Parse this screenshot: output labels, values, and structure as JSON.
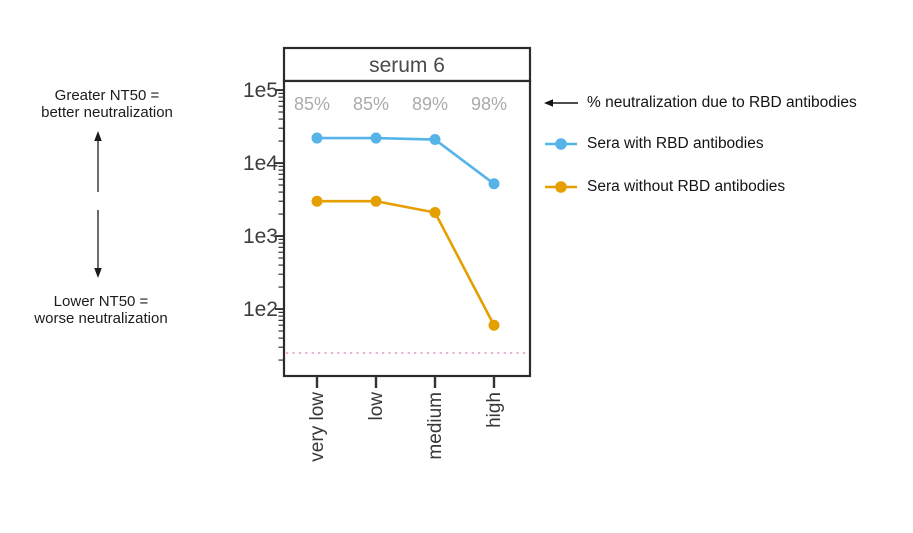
{
  "left_annotations": {
    "top_line1": "Greater NT50 =",
    "top_line2": "better neutralization",
    "bottom_line1": "Lower NT50 =",
    "bottom_line2": "worse neutralization"
  },
  "legend": {
    "arrow_label": "% neutralization due to RBD antibodies"
  },
  "chart_data": {
    "type": "line",
    "title": "serum 6",
    "x_categories": [
      "very low",
      "low",
      "medium",
      "high"
    ],
    "xlabel": "",
    "ylabel": "",
    "yscale": "log",
    "ylim": [
      13,
      130000
    ],
    "ytick_labels": [
      "1e5",
      "1e4",
      "1e3",
      "1e2"
    ],
    "ytick_values": [
      100000,
      10000,
      1000,
      100
    ],
    "grid": false,
    "legend_position": "right",
    "series": [
      {
        "name": "Sera with RBD antibodies",
        "color": "#56B4E9",
        "values": [
          22000,
          22000,
          21000,
          5200
        ]
      },
      {
        "name": "Sera without RBD antibodies",
        "color": "#E69F00",
        "values": [
          3000,
          3000,
          2100,
          60
        ]
      }
    ],
    "percent_labels": [
      "85%",
      "85%",
      "89%",
      "98%"
    ],
    "detection_limit_line": {
      "value": 25,
      "style": "dotted",
      "color": "#E8A6CB"
    },
    "axis_color": "#333333",
    "box_color": "#2b2b2b"
  }
}
